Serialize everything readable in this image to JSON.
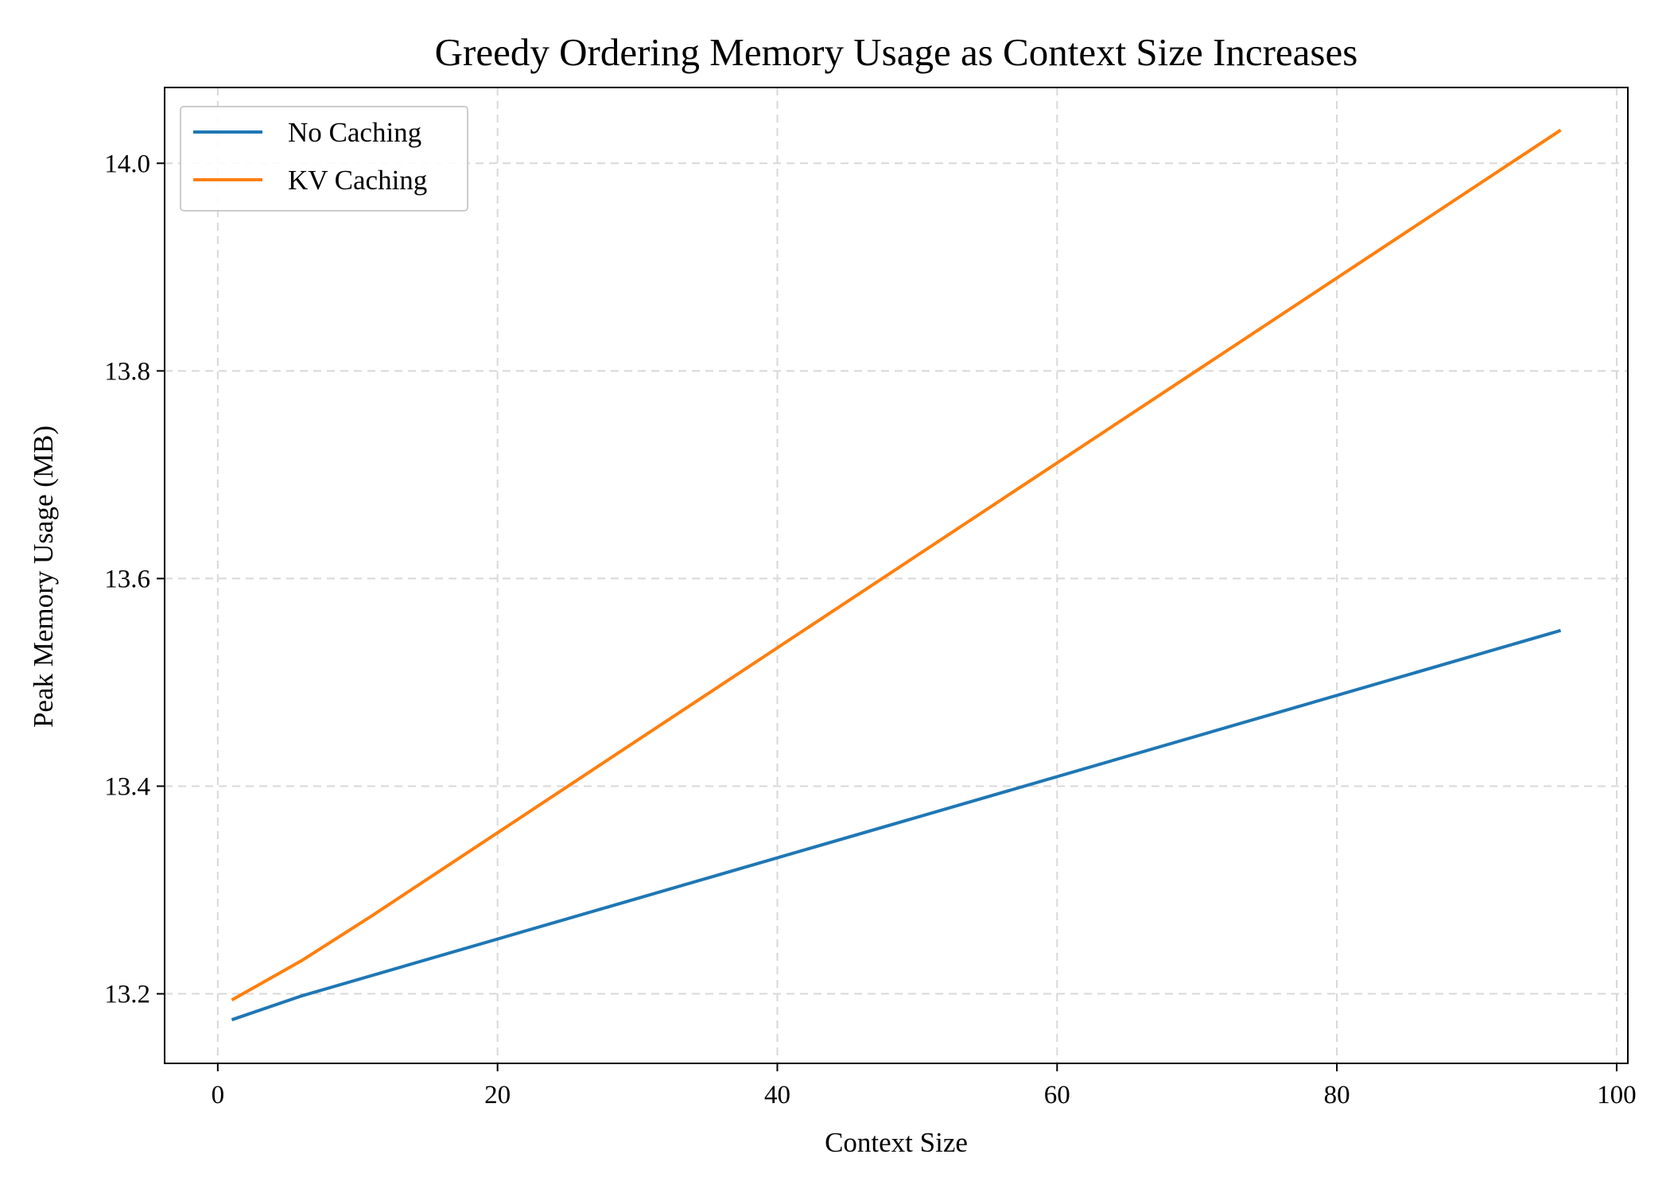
{
  "chart_data": {
    "type": "line",
    "title": "Greedy Ordering Memory Usage as Context Size Increases",
    "xlabel": "Context Size",
    "ylabel": "Peak Memory Usage (MB)",
    "xlim": [
      -3.8,
      100.8
    ],
    "ylim": [
      13.133,
      14.073
    ],
    "xticks": [
      0,
      20,
      40,
      60,
      80,
      100
    ],
    "yticks": [
      13.2,
      13.4,
      13.6,
      13.8,
      14.0
    ],
    "xtick_labels": [
      "0",
      "20",
      "40",
      "60",
      "80",
      "100"
    ],
    "ytick_labels": [
      "13.2",
      "13.4",
      "13.6",
      "13.8",
      "14.0"
    ],
    "grid": true,
    "legend_position": "upper-left",
    "series": [
      {
        "name": "No Caching",
        "color": "#1f77b4",
        "x": [
          1,
          6,
          96
        ],
        "y": [
          13.175,
          13.198,
          13.55
        ]
      },
      {
        "name": "KV Caching",
        "color": "#ff7f0e",
        "x": [
          1,
          6,
          11,
          96
        ],
        "y": [
          13.194,
          13.232,
          13.275,
          14.032
        ]
      }
    ]
  }
}
